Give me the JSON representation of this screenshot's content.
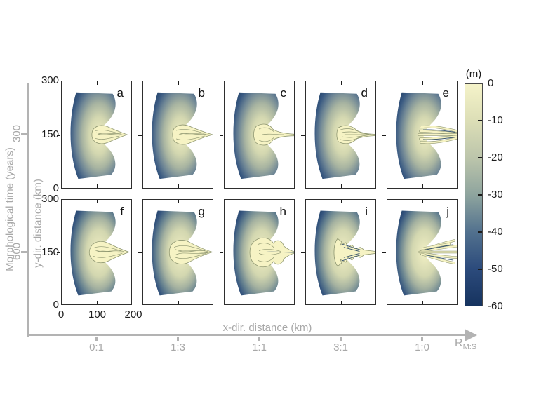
{
  "figure": {
    "background": "#ffffff",
    "accent_gray": "#a8a8a8",
    "left_meta_axis": {
      "label": "Morphological time (years)",
      "ticks": [
        "300",
        "600"
      ]
    },
    "bottom_meta_axis": {
      "ticks": [
        "0:1",
        "1:3",
        "1:1",
        "3:1",
        "1:0"
      ],
      "arrow_label": "R",
      "arrow_label_sub": "M:S"
    },
    "x_axis": {
      "label": "x-dir. distance (km)",
      "ticks": [
        "0",
        "100",
        "200"
      ]
    },
    "y_axis": {
      "label": "y-dir. distance (km)",
      "ticks": [
        "300",
        "150",
        "0"
      ]
    },
    "colorbar": {
      "title": "(m)",
      "ticks": [
        "0",
        "-10",
        "-20",
        "-30",
        "-40",
        "-50",
        "-60"
      ]
    },
    "panels": [
      {
        "letter": "a"
      },
      {
        "letter": "b"
      },
      {
        "letter": "c"
      },
      {
        "letter": "d"
      },
      {
        "letter": "e"
      },
      {
        "letter": "f"
      },
      {
        "letter": "g"
      },
      {
        "letter": "h"
      },
      {
        "letter": "i"
      },
      {
        "letter": "j"
      }
    ]
  },
  "chart_data": {
    "type": "heatmap",
    "description": "2x5 grid of simulated bathymetry maps (fan-shaped model domain with channel networks) for different mud-to-sand ratios R_M:S at two morphological times",
    "rows": [
      {
        "morphological_time_years": 300,
        "panels": [
          "a",
          "b",
          "c",
          "d",
          "e"
        ]
      },
      {
        "morphological_time_years": 600,
        "panels": [
          "f",
          "g",
          "h",
          "i",
          "j"
        ]
      }
    ],
    "columns_R_MS": [
      "0:1",
      "1:3",
      "1:1",
      "3:1",
      "1:0"
    ],
    "panel_axes": {
      "xlabel": "x-dir. distance (km)",
      "xlim": [
        0,
        200
      ],
      "xticks": [
        0,
        100,
        200
      ],
      "ylabel": "y-dir. distance (km)",
      "ylim": [
        0,
        300
      ],
      "yticks": [
        0,
        150,
        300
      ]
    },
    "color_axis": {
      "label": "(m)",
      "range": [
        -60,
        0
      ],
      "ticks": [
        0,
        -10,
        -20,
        -30,
        -40,
        -50,
        -60
      ],
      "colormap_stops": [
        {
          "value": 0,
          "color": "#f5f3c9"
        },
        {
          "value": -10,
          "color": "#dcdeb6"
        },
        {
          "value": -20,
          "color": "#bcc5ab"
        },
        {
          "value": -30,
          "color": "#8ea49e"
        },
        {
          "value": -40,
          "color": "#52718e"
        },
        {
          "value": -50,
          "color": "#2c4b7c"
        },
        {
          "value": -60,
          "color": "#16335f"
        }
      ]
    },
    "legend_position": "right-colorbar",
    "grid": false
  }
}
